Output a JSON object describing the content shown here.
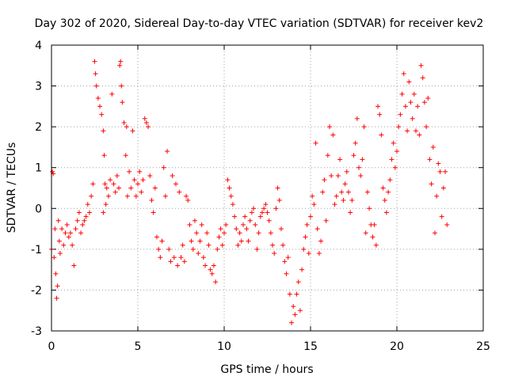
{
  "chart_data": {
    "type": "scatter",
    "title": "Day 302 of 2020, Sidereal Day-to-day VTEC variation (SDTVAR) for receiver kev2",
    "xlabel": "GPS time / hours",
    "ylabel": "SDTVAR / TECUs",
    "xlim": [
      0,
      25
    ],
    "ylim": [
      -3,
      4
    ],
    "xticks": [
      0,
      5,
      10,
      15,
      20,
      25
    ],
    "yticks": [
      -3,
      -2,
      -1,
      0,
      1,
      2,
      3,
      4
    ],
    "grid": true,
    "marker": "+",
    "color": "#ff0000",
    "series": [
      {
        "name": "SDTVAR",
        "points": [
          [
            0.0,
            -1.0
          ],
          [
            0.05,
            0.9
          ],
          [
            0.1,
            0.85
          ],
          [
            0.15,
            -1.2
          ],
          [
            0.2,
            -0.5
          ],
          [
            0.25,
            -1.6
          ],
          [
            0.3,
            -2.2
          ],
          [
            0.35,
            -1.9
          ],
          [
            0.4,
            -0.3
          ],
          [
            0.45,
            -0.8
          ],
          [
            0.5,
            -1.1
          ],
          [
            0.6,
            -0.5
          ],
          [
            0.7,
            -0.9
          ],
          [
            0.8,
            -0.6
          ],
          [
            0.9,
            -0.4
          ],
          [
            1.0,
            -0.7
          ],
          [
            1.1,
            -0.6
          ],
          [
            1.2,
            -0.9
          ],
          [
            1.3,
            -1.4
          ],
          [
            1.4,
            -0.5
          ],
          [
            1.5,
            -0.3
          ],
          [
            1.6,
            -0.1
          ],
          [
            1.7,
            -0.6
          ],
          [
            1.8,
            -0.4
          ],
          [
            1.9,
            -0.3
          ],
          [
            2.0,
            -0.2
          ],
          [
            2.1,
            0.1
          ],
          [
            2.2,
            -0.1
          ],
          [
            2.3,
            0.3
          ],
          [
            2.4,
            0.6
          ],
          [
            2.5,
            3.6
          ],
          [
            2.55,
            3.3
          ],
          [
            2.6,
            3.0
          ],
          [
            2.7,
            2.7
          ],
          [
            2.8,
            2.5
          ],
          [
            2.9,
            2.3
          ],
          [
            3.0,
            1.9
          ],
          [
            3.0,
            -0.1
          ],
          [
            3.05,
            1.3
          ],
          [
            3.1,
            0.6
          ],
          [
            3.15,
            0.1
          ],
          [
            3.2,
            0.5
          ],
          [
            3.3,
            0.3
          ],
          [
            3.4,
            0.7
          ],
          [
            3.5,
            2.8
          ],
          [
            3.6,
            0.6
          ],
          [
            3.7,
            0.4
          ],
          [
            3.8,
            0.8
          ],
          [
            3.9,
            0.5
          ],
          [
            3.95,
            3.5
          ],
          [
            4.0,
            3.6
          ],
          [
            4.05,
            3.0
          ],
          [
            4.1,
            2.6
          ],
          [
            4.2,
            2.1
          ],
          [
            4.3,
            1.3
          ],
          [
            4.35,
            2.0
          ],
          [
            4.4,
            0.3
          ],
          [
            4.5,
            0.9
          ],
          [
            4.6,
            0.5
          ],
          [
            4.7,
            1.9
          ],
          [
            4.8,
            0.7
          ],
          [
            4.9,
            0.3
          ],
          [
            5.0,
            0.6
          ],
          [
            5.1,
            0.9
          ],
          [
            5.2,
            0.4
          ],
          [
            5.3,
            0.7
          ],
          [
            5.4,
            2.2
          ],
          [
            5.5,
            2.1
          ],
          [
            5.6,
            2.0
          ],
          [
            5.7,
            0.8
          ],
          [
            5.8,
            0.2
          ],
          [
            5.9,
            -0.1
          ],
          [
            6.0,
            0.5
          ],
          [
            6.1,
            -0.7
          ],
          [
            6.2,
            -1.0
          ],
          [
            6.3,
            -1.2
          ],
          [
            6.4,
            -0.8
          ],
          [
            6.5,
            1.0
          ],
          [
            6.6,
            0.3
          ],
          [
            6.7,
            1.4
          ],
          [
            6.8,
            -1.0
          ],
          [
            6.9,
            -1.3
          ],
          [
            7.0,
            0.8
          ],
          [
            7.1,
            -1.2
          ],
          [
            7.2,
            0.6
          ],
          [
            7.3,
            -1.4
          ],
          [
            7.4,
            0.4
          ],
          [
            7.5,
            -1.2
          ],
          [
            7.6,
            -0.9
          ],
          [
            7.7,
            -1.3
          ],
          [
            7.8,
            0.3
          ],
          [
            7.9,
            0.2
          ],
          [
            8.0,
            -0.4
          ],
          [
            8.1,
            -0.8
          ],
          [
            8.2,
            -1.0
          ],
          [
            8.3,
            -0.3
          ],
          [
            8.4,
            -0.6
          ],
          [
            8.5,
            -1.1
          ],
          [
            8.6,
            -0.8
          ],
          [
            8.7,
            -0.4
          ],
          [
            8.8,
            -1.2
          ],
          [
            8.9,
            -1.4
          ],
          [
            9.0,
            -0.6
          ],
          [
            9.1,
            -0.9
          ],
          [
            9.2,
            -1.5
          ],
          [
            9.3,
            -1.6
          ],
          [
            9.4,
            -1.4
          ],
          [
            9.5,
            -1.8
          ],
          [
            9.6,
            -1.0
          ],
          [
            9.7,
            -0.7
          ],
          [
            9.8,
            -0.5
          ],
          [
            9.9,
            -0.9
          ],
          [
            10.0,
            -0.6
          ],
          [
            10.1,
            -0.4
          ],
          [
            10.2,
            0.7
          ],
          [
            10.3,
            0.5
          ],
          [
            10.4,
            0.3
          ],
          [
            10.5,
            0.1
          ],
          [
            10.6,
            -0.2
          ],
          [
            10.7,
            -0.5
          ],
          [
            10.8,
            -0.9
          ],
          [
            10.9,
            -0.6
          ],
          [
            11.0,
            -0.8
          ],
          [
            11.1,
            -0.4
          ],
          [
            11.2,
            -0.2
          ],
          [
            11.3,
            -0.5
          ],
          [
            11.4,
            -0.8
          ],
          [
            11.5,
            -0.3
          ],
          [
            11.6,
            -0.1
          ],
          [
            11.7,
            0.0
          ],
          [
            11.8,
            -0.4
          ],
          [
            11.9,
            -1.0
          ],
          [
            12.0,
            -0.6
          ],
          [
            12.1,
            -0.2
          ],
          [
            12.2,
            -0.1
          ],
          [
            12.3,
            0.0
          ],
          [
            12.4,
            0.1
          ],
          [
            12.5,
            -0.1
          ],
          [
            12.6,
            -0.3
          ],
          [
            12.7,
            -0.6
          ],
          [
            12.8,
            -0.9
          ],
          [
            12.9,
            -1.1
          ],
          [
            13.0,
            0.0
          ],
          [
            13.1,
            0.5
          ],
          [
            13.2,
            0.2
          ],
          [
            13.3,
            -0.5
          ],
          [
            13.4,
            -0.9
          ],
          [
            13.5,
            -1.3
          ],
          [
            13.6,
            -1.6
          ],
          [
            13.7,
            -1.2
          ],
          [
            13.8,
            -2.1
          ],
          [
            13.9,
            -2.8
          ],
          [
            14.0,
            -2.4
          ],
          [
            14.1,
            -2.6
          ],
          [
            14.2,
            -2.1
          ],
          [
            14.3,
            -1.8
          ],
          [
            14.4,
            -2.5
          ],
          [
            14.5,
            -1.5
          ],
          [
            14.6,
            -1.0
          ],
          [
            14.7,
            -0.7
          ],
          [
            14.8,
            -0.4
          ],
          [
            14.9,
            -1.1
          ],
          [
            15.0,
            -0.2
          ],
          [
            15.1,
            0.3
          ],
          [
            15.2,
            0.1
          ],
          [
            15.3,
            1.6
          ],
          [
            15.4,
            -0.5
          ],
          [
            15.5,
            -1.1
          ],
          [
            15.6,
            -0.8
          ],
          [
            15.7,
            0.4
          ],
          [
            15.8,
            0.7
          ],
          [
            15.9,
            -0.3
          ],
          [
            16.0,
            1.3
          ],
          [
            16.1,
            2.0
          ],
          [
            16.2,
            0.8
          ],
          [
            16.3,
            1.8
          ],
          [
            16.4,
            0.1
          ],
          [
            16.5,
            0.3
          ],
          [
            16.6,
            0.8
          ],
          [
            16.7,
            1.2
          ],
          [
            16.8,
            0.4
          ],
          [
            16.9,
            0.2
          ],
          [
            17.0,
            0.6
          ],
          [
            17.1,
            0.9
          ],
          [
            17.2,
            0.4
          ],
          [
            17.3,
            -0.1
          ],
          [
            17.4,
            0.2
          ],
          [
            17.5,
            1.3
          ],
          [
            17.6,
            1.6
          ],
          [
            17.7,
            2.2
          ],
          [
            17.8,
            1.0
          ],
          [
            17.9,
            0.8
          ],
          [
            18.0,
            1.2
          ],
          [
            18.1,
            2.0
          ],
          [
            18.2,
            -0.6
          ],
          [
            18.3,
            0.4
          ],
          [
            18.4,
            0.0
          ],
          [
            18.5,
            -0.4
          ],
          [
            18.6,
            -0.7
          ],
          [
            18.7,
            -0.4
          ],
          [
            18.8,
            -0.9
          ],
          [
            18.9,
            2.5
          ],
          [
            19.0,
            2.3
          ],
          [
            19.1,
            1.8
          ],
          [
            19.2,
            0.5
          ],
          [
            19.3,
            0.2
          ],
          [
            19.4,
            -0.1
          ],
          [
            19.5,
            0.4
          ],
          [
            19.6,
            0.7
          ],
          [
            19.7,
            1.2
          ],
          [
            19.8,
            1.6
          ],
          [
            19.9,
            1.0
          ],
          [
            20.0,
            1.4
          ],
          [
            20.1,
            2.0
          ],
          [
            20.2,
            2.3
          ],
          [
            20.3,
            2.8
          ],
          [
            20.4,
            3.3
          ],
          [
            20.5,
            2.5
          ],
          [
            20.6,
            1.9
          ],
          [
            20.7,
            3.1
          ],
          [
            20.8,
            2.6
          ],
          [
            20.9,
            2.2
          ],
          [
            21.0,
            2.8
          ],
          [
            21.1,
            1.9
          ],
          [
            21.2,
            2.5
          ],
          [
            21.3,
            1.8
          ],
          [
            21.4,
            3.5
          ],
          [
            21.5,
            3.2
          ],
          [
            21.6,
            2.6
          ],
          [
            21.7,
            2.0
          ],
          [
            21.8,
            2.7
          ],
          [
            21.9,
            1.2
          ],
          [
            22.0,
            0.6
          ],
          [
            22.1,
            1.5
          ],
          [
            22.2,
            -0.6
          ],
          [
            22.3,
            0.3
          ],
          [
            22.4,
            1.1
          ],
          [
            22.5,
            0.9
          ],
          [
            22.6,
            -0.2
          ],
          [
            22.7,
            0.5
          ],
          [
            22.8,
            0.9
          ],
          [
            22.9,
            -0.4
          ]
        ]
      }
    ]
  }
}
